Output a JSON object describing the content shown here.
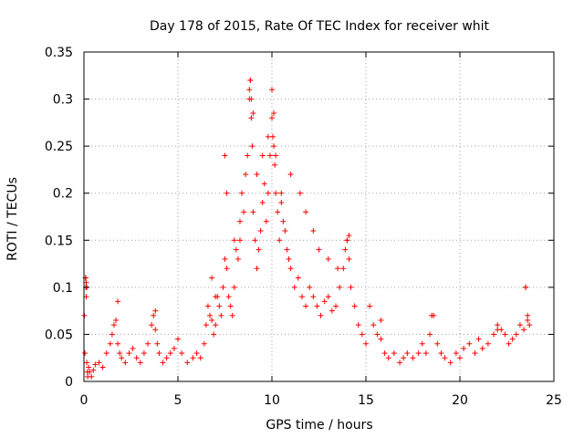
{
  "chart_data": {
    "type": "scatter",
    "title": "Day 178 of 2015, Rate Of TEC Index for receiver whit",
    "xlabel": "GPS time / hours",
    "ylabel": "ROTI / TECUs",
    "xlim": [
      0,
      25
    ],
    "ylim": [
      0,
      0.35
    ],
    "xticks": [
      0,
      5,
      10,
      15,
      20,
      25
    ],
    "xtick_labels": [
      "0",
      "5",
      "10",
      "15",
      "20",
      "25"
    ],
    "yticks": [
      0,
      0.05,
      0.1,
      0.15,
      0.2,
      0.25,
      0.3,
      0.35
    ],
    "ytick_labels": [
      "0",
      "0.05",
      "0.1",
      "0.15",
      "0.2",
      "0.25",
      "0.3",
      "0.35"
    ],
    "grid": true,
    "marker": "+",
    "color": "#ff0000",
    "series": [
      {
        "x": [
          0.02,
          0.05,
          0.08,
          0.1,
          0.12,
          0.15,
          0.18,
          0.2,
          0.25,
          0.3,
          0.4,
          0.5,
          0.6,
          0.8,
          1.0,
          1.2,
          1.4,
          1.5,
          1.6,
          1.7,
          1.8,
          1.9,
          2.0,
          2.2,
          2.4,
          2.6,
          2.8,
          3.0,
          3.2,
          3.4,
          3.6,
          3.7,
          3.8,
          3.9,
          4.0,
          4.2,
          4.4,
          4.6,
          4.8,
          5.0,
          5.2,
          5.5,
          5.8,
          6.0,
          6.2,
          6.4,
          6.5,
          6.6,
          6.7,
          6.8,
          6.9,
          7.0,
          7.1,
          7.2,
          7.3,
          7.4,
          7.5,
          7.6,
          7.7,
          7.8,
          7.9,
          8.0,
          8.1,
          8.2,
          8.3,
          8.4,
          8.5,
          8.6,
          8.7,
          8.8,
          8.85,
          8.9,
          8.95,
          9.0,
          9.1,
          9.2,
          9.3,
          9.4,
          9.5,
          9.6,
          9.7,
          9.8,
          9.9,
          10.0,
          10.05,
          10.1,
          10.15,
          10.2,
          10.3,
          10.4,
          10.5,
          10.6,
          10.7,
          10.8,
          10.9,
          11.0,
          11.2,
          11.4,
          11.6,
          11.8,
          12.0,
          12.2,
          12.4,
          12.6,
          12.8,
          13.0,
          13.2,
          13.4,
          13.6,
          13.8,
          13.9,
          14.0,
          14.1,
          14.2,
          14.4,
          14.6,
          14.8,
          15.0,
          15.2,
          15.4,
          15.6,
          15.8,
          16.0,
          16.2,
          16.5,
          16.8,
          17.0,
          17.2,
          17.5,
          17.8,
          18.0,
          18.2,
          18.4,
          18.6,
          18.8,
          19.0,
          19.2,
          19.5,
          19.8,
          20.0,
          20.2,
          20.5,
          20.8,
          21.0,
          21.2,
          21.5,
          21.8,
          22.0,
          22.2,
          22.4,
          22.6,
          22.8,
          23.0,
          23.2,
          23.4,
          23.5,
          23.6,
          23.7,
          0.1,
          0.12,
          0.15,
          1.8,
          3.8,
          8.8,
          8.85,
          8.9,
          9.0,
          10.0,
          10.1,
          10.2,
          7.5,
          7.6,
          14.0,
          14.1,
          15.8,
          18.5,
          22.0,
          23.5,
          23.6,
          9.5,
          9.8,
          11.0,
          11.5,
          12.5,
          13.5,
          6.8,
          7.0,
          8.0,
          8.3,
          9.2,
          10.5,
          11.8,
          12.2,
          13.0
        ],
        "y": [
          0.07,
          0.03,
          0.11,
          0.1,
          0.09,
          0.02,
          0.01,
          0.005,
          0.015,
          0.01,
          0.005,
          0.012,
          0.018,
          0.02,
          0.015,
          0.03,
          0.04,
          0.05,
          0.06,
          0.065,
          0.04,
          0.03,
          0.025,
          0.02,
          0.03,
          0.035,
          0.025,
          0.02,
          0.03,
          0.04,
          0.06,
          0.07,
          0.055,
          0.04,
          0.03,
          0.02,
          0.025,
          0.03,
          0.035,
          0.045,
          0.03,
          0.02,
          0.025,
          0.03,
          0.025,
          0.04,
          0.06,
          0.08,
          0.07,
          0.065,
          0.05,
          0.06,
          0.09,
          0.08,
          0.07,
          0.1,
          0.13,
          0.12,
          0.09,
          0.08,
          0.07,
          0.1,
          0.14,
          0.13,
          0.15,
          0.2,
          0.18,
          0.22,
          0.24,
          0.3,
          0.32,
          0.28,
          0.25,
          0.18,
          0.15,
          0.12,
          0.14,
          0.16,
          0.19,
          0.21,
          0.17,
          0.2,
          0.24,
          0.28,
          0.26,
          0.25,
          0.23,
          0.2,
          0.18,
          0.15,
          0.19,
          0.17,
          0.16,
          0.14,
          0.13,
          0.12,
          0.1,
          0.11,
          0.09,
          0.08,
          0.1,
          0.09,
          0.08,
          0.07,
          0.085,
          0.09,
          0.075,
          0.08,
          0.1,
          0.12,
          0.14,
          0.15,
          0.13,
          0.1,
          0.08,
          0.06,
          0.05,
          0.04,
          0.08,
          0.06,
          0.05,
          0.045,
          0.03,
          0.025,
          0.03,
          0.02,
          0.025,
          0.03,
          0.025,
          0.03,
          0.04,
          0.03,
          0.05,
          0.07,
          0.04,
          0.03,
          0.025,
          0.02,
          0.03,
          0.025,
          0.035,
          0.04,
          0.03,
          0.045,
          0.035,
          0.04,
          0.05,
          0.06,
          0.055,
          0.05,
          0.04,
          0.045,
          0.05,
          0.06,
          0.055,
          0.1,
          0.065,
          0.06,
          0.11,
          0.105,
          0.1,
          0.085,
          0.075,
          0.31,
          0.32,
          0.3,
          0.285,
          0.31,
          0.285,
          0.24,
          0.24,
          0.2,
          0.15,
          0.155,
          0.065,
          0.07,
          0.055,
          0.1,
          0.07,
          0.24,
          0.26,
          0.22,
          0.2,
          0.14,
          0.12,
          0.11,
          0.09,
          0.15,
          0.17,
          0.22,
          0.2,
          0.18,
          0.16,
          0.13
        ]
      }
    ]
  }
}
